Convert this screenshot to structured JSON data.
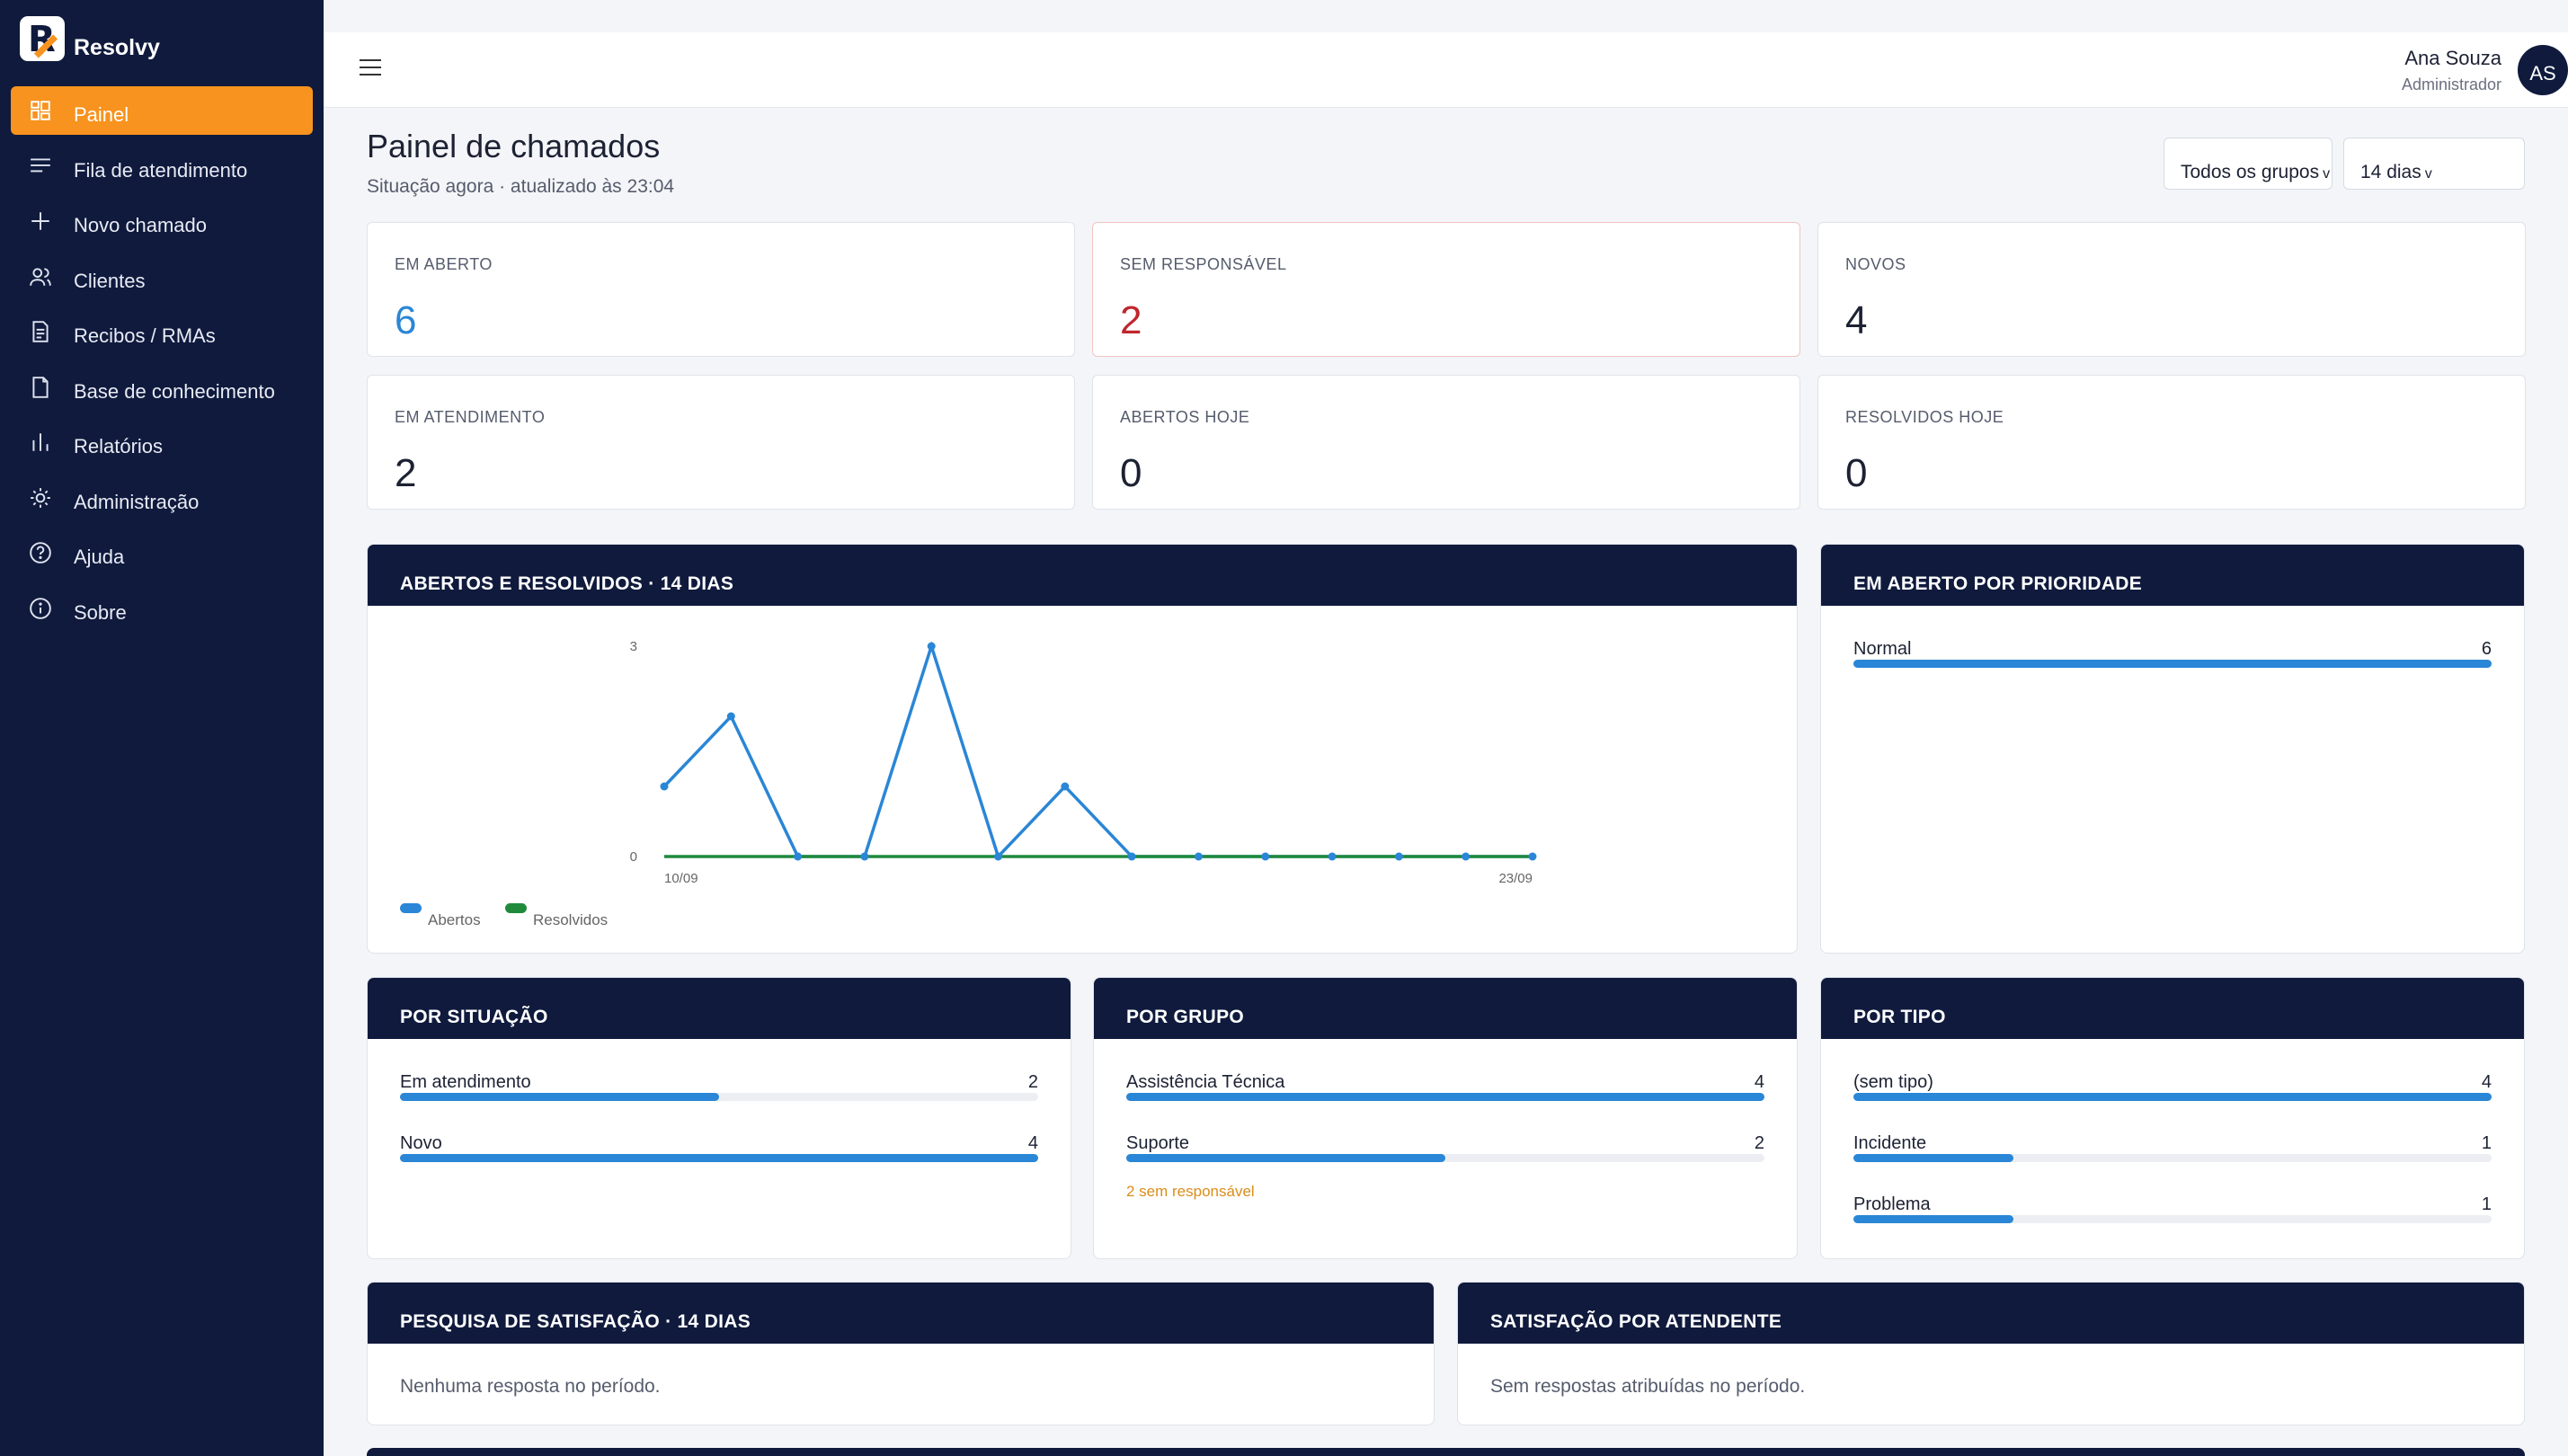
{
  "brand": {
    "name": "Resolvy"
  },
  "sidebar": {
    "items": [
      {
        "label": "Painel",
        "icon": "dashboard-icon",
        "active": true
      },
      {
        "label": "Fila de atendimento",
        "icon": "list-icon"
      },
      {
        "label": "Novo chamado",
        "icon": "plus-icon"
      },
      {
        "label": "Clientes",
        "icon": "users-icon"
      },
      {
        "label": "Recibos / RMAs",
        "icon": "receipt-icon"
      },
      {
        "label": "Base de conhecimento",
        "icon": "document-icon"
      },
      {
        "label": "Relatórios",
        "icon": "bar-chart-icon"
      },
      {
        "label": "Administração",
        "icon": "gear-icon"
      },
      {
        "label": "Ajuda",
        "icon": "help-icon"
      },
      {
        "label": "Sobre",
        "icon": "info-icon"
      }
    ]
  },
  "user": {
    "name": "Ana Souza",
    "role": "Administrador",
    "initials": "AS"
  },
  "header": {
    "title": "Painel de chamados",
    "subtitle": "Situação agora · atualizado às 23:04",
    "filter_group": "Todos os grupos",
    "filter_period": "14 dias"
  },
  "kpis": [
    {
      "label": "EM ABERTO",
      "value": "6",
      "color": "#2a86d6"
    },
    {
      "label": "SEM RESPONSÁVEL",
      "value": "2",
      "color": "#c0262d"
    },
    {
      "label": "NOVOS",
      "value": "4",
      "color": "#1c2233"
    },
    {
      "label": "EM ATENDIMENTO",
      "value": "2",
      "color": "#1c2233"
    },
    {
      "label": "ABERTOS HOJE",
      "value": "0",
      "color": "#1c2233"
    },
    {
      "label": "RESOLVIDOS HOJE",
      "value": "0",
      "color": "#1c2233"
    }
  ],
  "panels": {
    "trend_title": "ABERTOS E RESOLVIDOS · 14 DIAS",
    "priority": {
      "title": "EM ABERTO POR PRIORIDADE",
      "rows": [
        {
          "label": "Normal",
          "value": "6",
          "fraction": 1.0
        }
      ]
    },
    "situation": {
      "title": "POR SITUAÇÃO",
      "rows": [
        {
          "label": "Em atendimento",
          "value": "2",
          "fraction": 0.5
        },
        {
          "label": "Novo",
          "value": "4",
          "fraction": 1.0
        }
      ]
    },
    "group": {
      "title": "POR GRUPO",
      "rows": [
        {
          "label": "Assistência Técnica",
          "value": "4",
          "fraction": 1.0
        },
        {
          "label": "Suporte",
          "value": "2",
          "fraction": 0.5
        }
      ],
      "note": "2 sem responsável"
    },
    "type": {
      "title": "POR TIPO",
      "rows": [
        {
          "label": "(sem tipo)",
          "value": "4",
          "fraction": 1.0
        },
        {
          "label": "Incidente",
          "value": "1",
          "fraction": 0.25
        },
        {
          "label": "Problema",
          "value": "1",
          "fraction": 0.25
        }
      ]
    },
    "survey": {
      "title": "PESQUISA DE SATISFAÇÃO · 14 DIAS",
      "empty": "Nenhuma resposta no período."
    },
    "agent_satisfaction": {
      "title": "SATISFAÇÃO POR ATENDENTE",
      "empty": "Sem respostas atribuídas no período."
    }
  },
  "chart_data": {
    "type": "line",
    "title": "ABERTOS E RESOLVIDOS · 14 DIAS",
    "x_first_label": "10/09",
    "x_last_label": "23/09",
    "x": [
      "10/09",
      "11/09",
      "12/09",
      "13/09",
      "14/09",
      "15/09",
      "16/09",
      "17/09",
      "18/09",
      "19/09",
      "20/09",
      "21/09",
      "22/09",
      "23/09"
    ],
    "ylim": [
      0,
      3
    ],
    "yticks": [
      "0",
      "3"
    ],
    "series": [
      {
        "name": "Abertos",
        "color": "#2a86d6",
        "values": [
          1,
          2,
          0,
          0,
          3,
          0,
          1,
          0,
          0,
          0,
          0,
          0,
          0,
          0
        ]
      },
      {
        "name": "Resolvidos",
        "color": "#1f8a3c",
        "values": [
          0,
          0,
          0,
          0,
          0,
          0,
          0,
          0,
          0,
          0,
          0,
          0,
          0,
          0
        ]
      }
    ],
    "legend": "bottom-left"
  }
}
